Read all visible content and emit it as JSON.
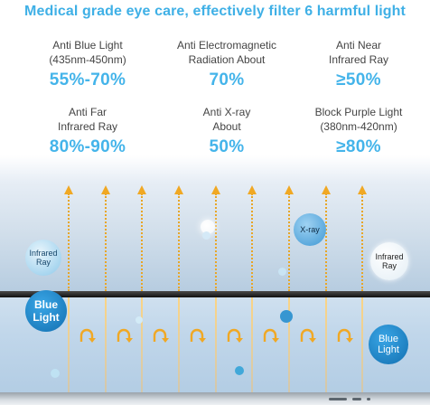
{
  "headline": "Medical grade eye care, effectively filter 6 harmful light",
  "stats": [
    {
      "name_line1": "Anti Blue Light",
      "name_line2": "(435nm-450nm)",
      "value": "55%-70%"
    },
    {
      "name_line1": "Anti Electromagnetic",
      "name_line2": "Radiation About",
      "value": "70%"
    },
    {
      "name_line1": "Anti Near",
      "name_line2": "Infrared Ray",
      "value": "≥50%"
    },
    {
      "name_line1": "Anti Far",
      "name_line2": "Infrared Ray",
      "value": "80%-90%"
    },
    {
      "name_line1": "Anti X-ray",
      "name_line2": "About",
      "value": "50%"
    },
    {
      "name_line1": "Block Purple Light",
      "name_line2": "(380nm-420nm)",
      "value": "≥80%"
    }
  ],
  "bubbles": {
    "infrared_left": {
      "line1": "Infrared",
      "line2": "Ray"
    },
    "infrared_right": {
      "line1": "Infrared",
      "line2": "Ray"
    },
    "xray": {
      "line1": "X-ray"
    },
    "blue_light_left": {
      "line1": "Blue",
      "line2": "Light"
    },
    "blue_light_right": {
      "line1": "Blue",
      "line2": "Light"
    }
  },
  "colors": {
    "accent": "#44b4ea",
    "beam": "#f0a824",
    "filter_bar": "#111111",
    "blue_bubble": "#1e88c8"
  },
  "icons": {
    "beam_arrow": "arrow-up-icon",
    "reflection": "u-turn-arrow-icon"
  }
}
